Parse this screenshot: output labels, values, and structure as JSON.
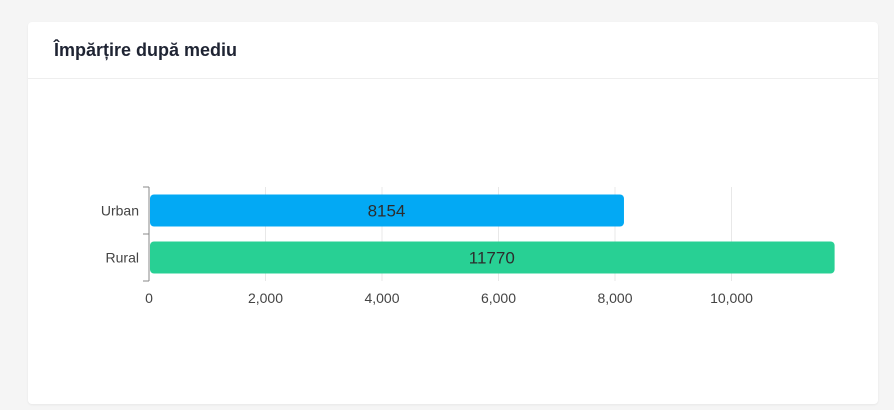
{
  "card": {
    "title": "Împărțire după mediu"
  },
  "chart_data": {
    "type": "bar",
    "orientation": "horizontal",
    "categories": [
      "Urban",
      "Rural"
    ],
    "values": [
      8154,
      11770
    ],
    "data_labels": [
      "8154",
      "11770"
    ],
    "colors": [
      "#03a9f4",
      "#28d094"
    ],
    "xlim": [
      0,
      12000
    ],
    "xticks": [
      0,
      2000,
      4000,
      6000,
      8000,
      10000
    ],
    "xtick_labels": [
      "0",
      "2,000",
      "4,000",
      "6,000",
      "8,000",
      "10,000"
    ],
    "grid": true,
    "legend": "none"
  }
}
